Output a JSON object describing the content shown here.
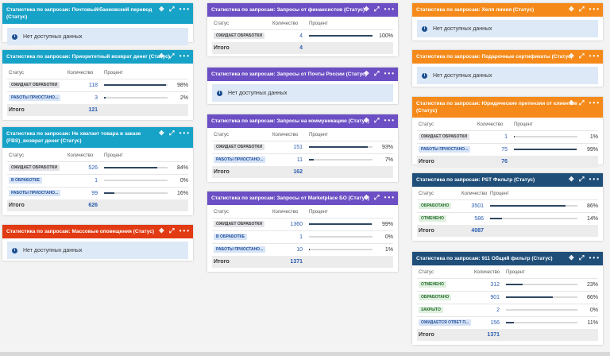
{
  "icons": {
    "move": "✥",
    "expand": "⤢",
    "menu": "•••",
    "info": "i"
  },
  "colors": {
    "teal": "#17a2c7",
    "red": "#e23a12",
    "purple": "#6c4fc4",
    "orange": "#f58a1a",
    "navy": "#1f4e79"
  },
  "cols": {
    "status": "Статус",
    "count": "Количество",
    "percent": "Процент"
  },
  "total_label": "Итого",
  "nodata_text": "Нет доступных данных",
  "cards": {
    "c1": {
      "title": "Статистика по запросам: Почтовый/банковский перевод (Статус)"
    },
    "c2": {
      "title": "Статистика по запросам: Приоритетный возврат денег (Статус)",
      "rows": [
        {
          "status": "ОЖИДАЕТ ОБРАБОТКИ",
          "count": "118",
          "pct": "98%",
          "level": 0.98
        },
        {
          "status": "РАБОТЫ ПРИОСТАНО...",
          "count": "3",
          "pct": "2%",
          "level": 0.02
        }
      ],
      "total": "121"
    },
    "c3": {
      "title": "Статистика по запросам: Не хватает товара в заказе (FBS)_возврат денег (Статус)",
      "rows": [
        {
          "status": "ОЖИДАЕТ ОБРАБОТКИ",
          "count": "526",
          "pct": "84%",
          "level": 0.84
        },
        {
          "status": "В ОБРАБОТКЕ",
          "count": "1",
          "pct": "0%",
          "level": 0.0
        },
        {
          "status": "РАБОТЫ ПРИОСТАНО...",
          "count": "99",
          "pct": "16%",
          "level": 0.16
        }
      ],
      "total": "626"
    },
    "c4": {
      "title": "Статистика по запросам: Массовые оповещения (Статус)"
    },
    "c5": {
      "title": "Статистика по запросам: Запросы от финансистов (Статус)",
      "rows": [
        {
          "status": "ОЖИДАЕТ ОБРАБОТКИ",
          "count": "4",
          "pct": "100%",
          "level": 1.0
        }
      ],
      "total": "4"
    },
    "c6": {
      "title": "Статистика по запросам: Запросы от Почты России (Статус)"
    },
    "c7": {
      "title": "Статистика по запросам: Запросы на коммуникацию (Статус)",
      "rows": [
        {
          "status": "ОЖИДАЕТ ОБРАБОТКИ",
          "count": "151",
          "pct": "93%",
          "level": 0.93
        },
        {
          "status": "РАБОТЫ ПРИОСТАНО...",
          "count": "11",
          "pct": "7%",
          "level": 0.07
        }
      ],
      "total": "162"
    },
    "c8": {
      "title": "Статистика по запросам: Запросы от Marketplace БО (Статус)",
      "rows": [
        {
          "status": "ОЖИДАЕТ ОБРАБОТКИ",
          "count": "1360",
          "pct": "99%",
          "level": 0.99
        },
        {
          "status": "В ОБРАБОТКЕ",
          "count": "1",
          "pct": "0%",
          "level": 0.0
        },
        {
          "status": "РАБОТЫ ПРИОСТАНО...",
          "count": "10",
          "pct": "1%",
          "level": 0.01
        }
      ],
      "total": "1371"
    },
    "c9": {
      "title": "Статистика по запросам: Хелп линия (Статус)"
    },
    "c10": {
      "title": "Статистика по запросам: Подарочные сертификаты (Статус)"
    },
    "c11": {
      "title": "Статистика по запросам: Юридические претензии от клиентов (Статус)",
      "rows": [
        {
          "status": "ОЖИДАЕТ ОБРАБОТКИ",
          "count": "1",
          "pct": "1%",
          "level": 0.01
        },
        {
          "status": "РАБОТЫ ПРИОСТАНО...",
          "count": "75",
          "pct": "99%",
          "level": 0.99
        }
      ],
      "total": "76"
    },
    "c12": {
      "title": "Статистика по запросам: PST Фильтр (Статус)",
      "rows": [
        {
          "status": "ОБРАБОТАНО",
          "count": "3501",
          "pct": "86%",
          "level": 0.86
        },
        {
          "status": "ОТМЕНЕНО",
          "count": "586",
          "pct": "14%",
          "level": 0.14
        }
      ],
      "total": "4087"
    },
    "c13": {
      "title": "Статистика по запросам: 911 Общий фильтр (Статус)",
      "rows": [
        {
          "status": "ОТМЕНЕНО",
          "count": "312",
          "pct": "23%",
          "level": 0.23
        },
        {
          "status": "ОБРАБОТАНО",
          "count": "901",
          "pct": "66%",
          "level": 0.66
        },
        {
          "status": "ЗАКРЫТО",
          "count": "2",
          "pct": "0%",
          "level": 0.0
        },
        {
          "status": "ОЖИДАЕТСЯ ОТВЕТ П...",
          "count": "156",
          "pct": "11%",
          "level": 0.11
        }
      ],
      "total": "1371"
    }
  }
}
